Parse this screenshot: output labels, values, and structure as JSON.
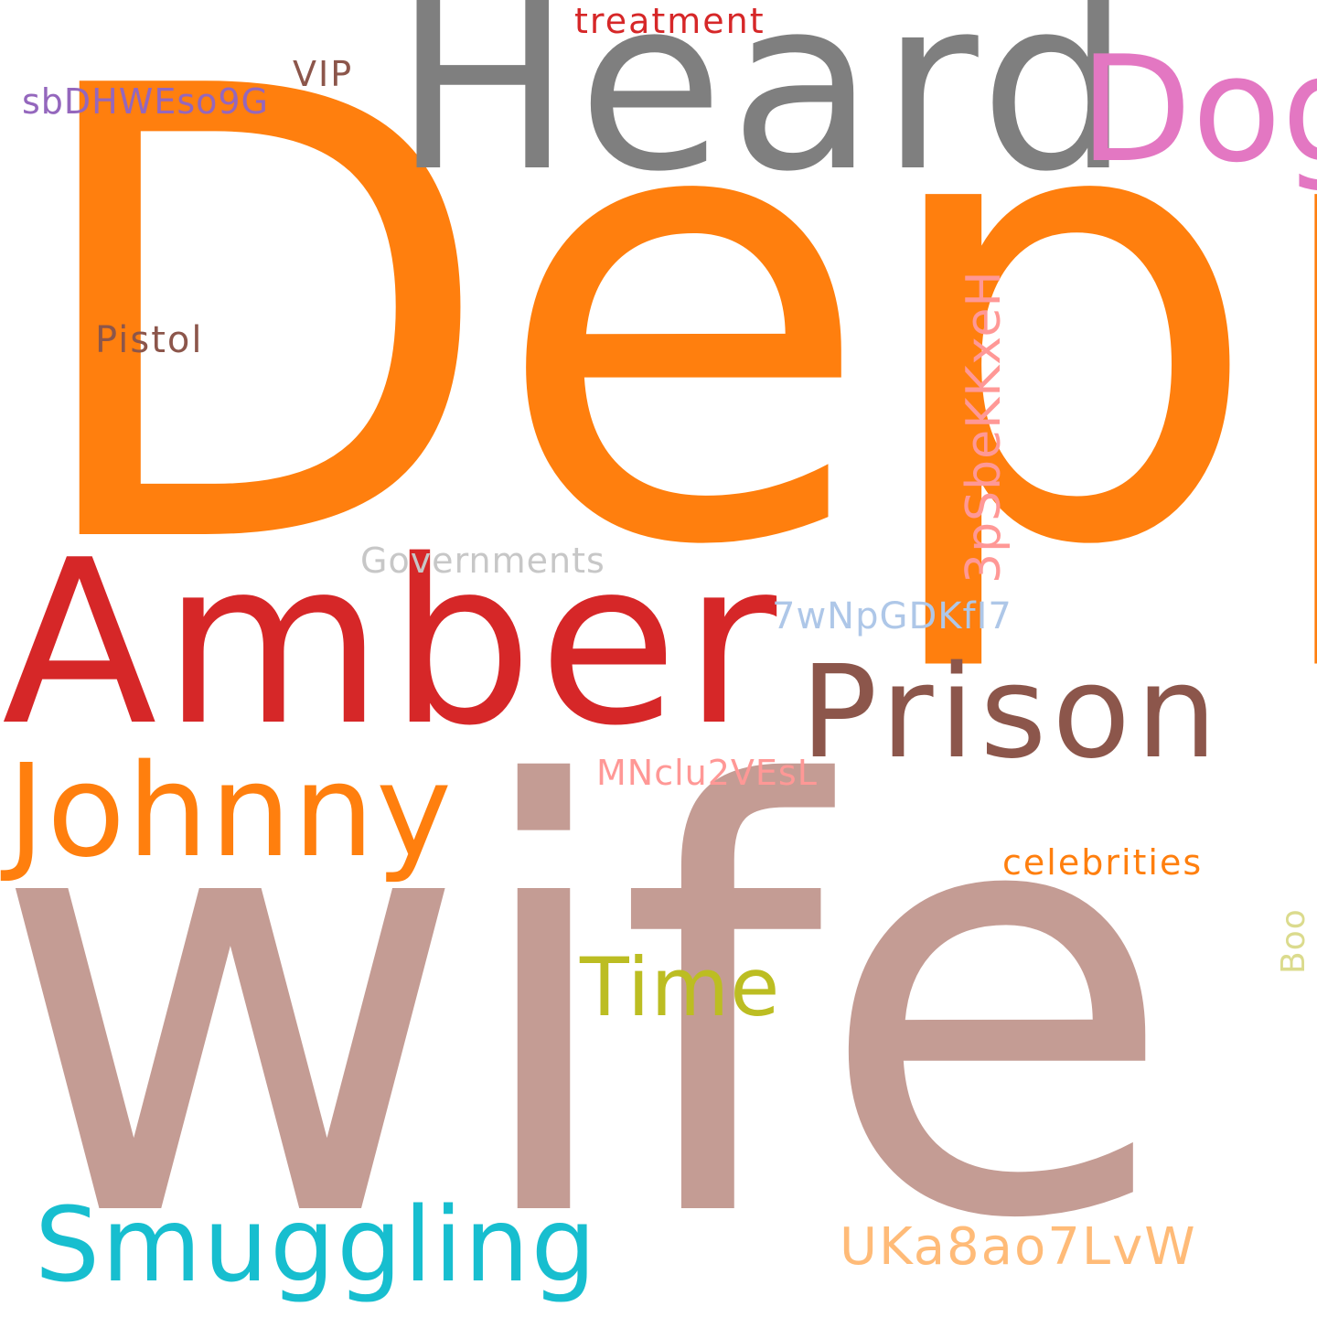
{
  "words": [
    {
      "id": "depp",
      "text": "Depp",
      "color": "#ff7f0e",
      "orientation": "horizontal"
    },
    {
      "id": "wife",
      "text": "wife",
      "color": "#c49c94",
      "orientation": "horizontal"
    },
    {
      "id": "heard",
      "text": "Heard",
      "color": "#7f7f7f",
      "orientation": "horizontal"
    },
    {
      "id": "dog",
      "text": "Dog",
      "color": "#e377c2",
      "orientation": "horizontal"
    },
    {
      "id": "amber",
      "text": "Amber",
      "color": "#d62728",
      "orientation": "horizontal"
    },
    {
      "id": "prison",
      "text": "Prison",
      "color": "#8c564b",
      "orientation": "horizontal"
    },
    {
      "id": "johnny",
      "text": "Johnny",
      "color": "#ff7f0e",
      "orientation": "horizontal"
    },
    {
      "id": "smuggling",
      "text": "Smuggling",
      "color": "#17becf",
      "orientation": "horizontal"
    },
    {
      "id": "time",
      "text": "Time",
      "color": "#bcbd22",
      "orientation": "horizontal"
    },
    {
      "id": "ukaa",
      "text": "UKa8ao7LvW",
      "color": "#ffbb78",
      "orientation": "horizontal"
    },
    {
      "id": "treatment",
      "text": "treatment",
      "color": "#d62728",
      "orientation": "horizontal"
    },
    {
      "id": "vip",
      "text": "VIP",
      "color": "#8c564b",
      "orientation": "horizontal"
    },
    {
      "id": "sbd",
      "text": "sbDHWEso9G",
      "color": "#9467bd",
      "orientation": "horizontal"
    },
    {
      "id": "pistol",
      "text": "Pistol",
      "color": "#8c564b",
      "orientation": "horizontal"
    },
    {
      "id": "governments",
      "text": "Governments",
      "color": "#c7c7c7",
      "orientation": "horizontal"
    },
    {
      "id": "seven",
      "text": "7wNpGDKfI7",
      "color": "#aec7e8",
      "orientation": "horizontal"
    },
    {
      "id": "mnclu",
      "text": "MNclu2VEsL",
      "color": "#ff9896",
      "orientation": "horizontal"
    },
    {
      "id": "celebrities",
      "text": "celebrities",
      "color": "#ff7f0e",
      "orientation": "horizontal"
    },
    {
      "id": "threeps",
      "text": "3pSbeKKxeH",
      "color": "#ff9896",
      "orientation": "vertical"
    },
    {
      "id": "boo",
      "text": "Boo",
      "color": "#dbdb8d",
      "orientation": "vertical"
    }
  ],
  "background_color": "#ffffff",
  "dot_color": "#c49c94"
}
